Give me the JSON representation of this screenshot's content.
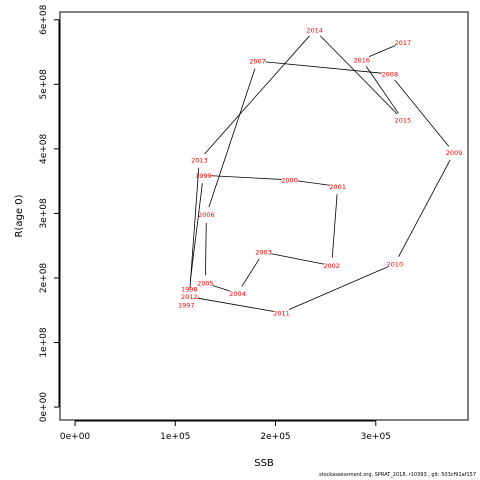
{
  "chart_data": {
    "type": "line",
    "xlabel": "SSB",
    "ylabel": "R(age 0)",
    "xlim": [
      -15000,
      392000
    ],
    "ylim": [
      -20000000,
      612000000
    ],
    "x_ticks": [
      0,
      100000,
      200000,
      300000
    ],
    "x_tick_labels": [
      "0e+00",
      "1e+05",
      "2e+05",
      "3e+05"
    ],
    "y_ticks": [
      0,
      100000000,
      200000000,
      300000000,
      400000000,
      500000000,
      600000000
    ],
    "y_tick_labels": [
      "0e+00",
      "1e+08",
      "2e+08",
      "3e+08",
      "4e+08",
      "5e+08",
      "6e+08"
    ],
    "grid": false,
    "line_color": "#000000",
    "label_color": "#ff0000",
    "points": [
      {
        "year": "1997",
        "ssb": 111000,
        "rec": 158000000
      },
      {
        "year": "1998",
        "ssb": 114000,
        "rec": 183000000
      },
      {
        "year": "1999",
        "ssb": 128000,
        "rec": 359000000
      },
      {
        "year": "2000",
        "ssb": 214000,
        "rec": 352000000
      },
      {
        "year": "2001",
        "ssb": 262000,
        "rec": 342000000
      },
      {
        "year": "2002",
        "ssb": 256000,
        "rec": 219000000
      },
      {
        "year": "2003",
        "ssb": 188000,
        "rec": 240000000
      },
      {
        "year": "2004",
        "ssb": 162000,
        "rec": 176000000
      },
      {
        "year": "2005",
        "ssb": 130000,
        "rec": 192000000
      },
      {
        "year": "2006",
        "ssb": 131000,
        "rec": 298000000
      },
      {
        "year": "2007",
        "ssb": 182000,
        "rec": 536000000
      },
      {
        "year": "2008",
        "ssb": 314000,
        "rec": 516000000
      },
      {
        "year": "2009",
        "ssb": 378000,
        "rec": 394000000
      },
      {
        "year": "2010",
        "ssb": 319000,
        "rec": 222000000
      },
      {
        "year": "2011",
        "ssb": 206000,
        "rec": 146000000
      },
      {
        "year": "2012",
        "ssb": 114000,
        "rec": 171000000
      },
      {
        "year": "2013",
        "ssb": 124000,
        "rec": 383000000
      },
      {
        "year": "2014",
        "ssb": 239000,
        "rec": 584000000
      },
      {
        "year": "2015",
        "ssb": 327000,
        "rec": 445000000
      },
      {
        "year": "2016",
        "ssb": 286000,
        "rec": 538000000
      },
      {
        "year": "2017",
        "ssb": 327000,
        "rec": 565000000
      }
    ]
  },
  "footer": "stockassessment.org, SPRAT_2018, r10393 , git: 503cf91af157"
}
